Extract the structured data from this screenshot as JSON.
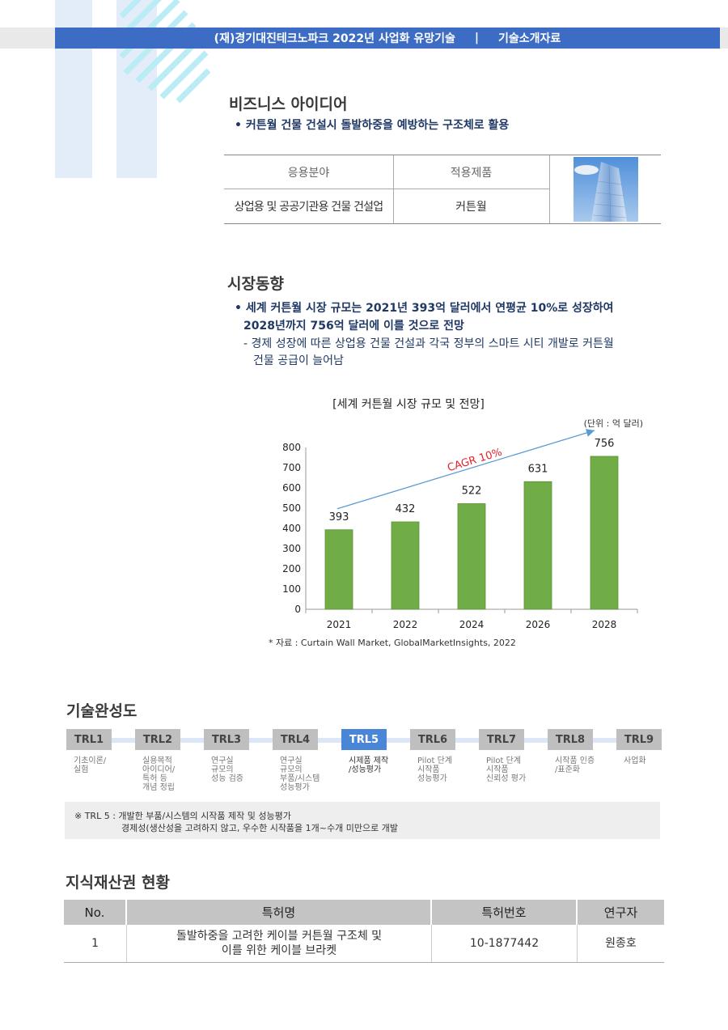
{
  "header": {
    "org": "(재)경기대진테크노파크 2022년 사업화 유망기술",
    "sep": "|",
    "doc": "기술소개자료"
  },
  "business": {
    "title": "비즈니스 아이디어",
    "bullet": "커튼월 건물 건설시 돌발하중을 예방하는 구조체로 활용",
    "table": {
      "head_field": "응용분야",
      "head_product": "적용제품",
      "field": "상업용 및 공공기관용 건물 건설업",
      "product": "커튼월"
    }
  },
  "market": {
    "title": "시장동향",
    "bullet_line1": "세계 커튼월 시장 규모는 2021년 393억 달러에서 연평균 10%로 성장하여",
    "bullet_line2": "2028년까지 756억 달러에 이를 것으로 전망",
    "sub_line1": "- 경제 성장에 따른 상업용 건물 건설과 각국 정부의 스마트 시티 개발로 커튼월",
    "sub_line2": "건물 공급이 늘어남"
  },
  "chart_data": {
    "type": "bar",
    "title": "[세계 커튼월 시장 규모 및 전망]",
    "unit": "(단위 : 억 달러)",
    "categories": [
      "2021",
      "2022",
      "2024",
      "2026",
      "2028"
    ],
    "values": [
      393,
      432,
      522,
      631,
      756
    ],
    "ylim": [
      0,
      800
    ],
    "yticks": [
      "0",
      "100",
      "200",
      "300",
      "400",
      "500",
      "600",
      "700",
      "800"
    ],
    "annotation": "CAGR 10%",
    "source": "* 자료 : Curtain Wall Market, GlobalMarketInsights, 2022",
    "bar_color": "#70ad47",
    "arrow_color": "#5b9bd5"
  },
  "trl": {
    "title": "기술완성도",
    "levels": [
      {
        "label": "TRL1",
        "desc": [
          "기초이론/",
          "실험"
        ]
      },
      {
        "label": "TRL2",
        "desc": [
          "실용목적",
          "아이디어/",
          "특허 등",
          "개념 정립"
        ]
      },
      {
        "label": "TRL3",
        "desc": [
          "연구실",
          "규모의",
          "성능 검증"
        ]
      },
      {
        "label": "TRL4",
        "desc": [
          "연구실",
          "규모의",
          "부품/시스템",
          "성능평가"
        ]
      },
      {
        "label": "TRL5",
        "desc": [
          "시제품 제작",
          "/성능평가"
        ]
      },
      {
        "label": "TRL6",
        "desc": [
          "Pilot 단계",
          "시작품",
          "성능평가"
        ]
      },
      {
        "label": "TRL7",
        "desc": [
          "Pilot 단계",
          "시작품",
          "신뢰성 평가"
        ]
      },
      {
        "label": "TRL8",
        "desc": [
          "시작품 인증",
          "/표준화"
        ]
      },
      {
        "label": "TRL9",
        "desc": [
          "사업화"
        ]
      }
    ],
    "active_index": 4,
    "note_line1": "※ TRL 5  : 개발한 부품/시스템의 시작품 제작 및 성능평가",
    "note_line2": "경제성(생산성을 고려하지 않고, 우수한 시작품을 1개~수개 미만으로 개발"
  },
  "ip": {
    "title": "지식재산권 현황",
    "headers": [
      "No.",
      "특허명",
      "특허번호",
      "연구자"
    ],
    "row": {
      "no": "1",
      "name_line1": "돌발하중을 고려한 케이블 커튼월 구조체 및",
      "name_line2": "이를 위한 케이블 브라켓",
      "number": "10-1877442",
      "researcher": "원종호"
    }
  }
}
